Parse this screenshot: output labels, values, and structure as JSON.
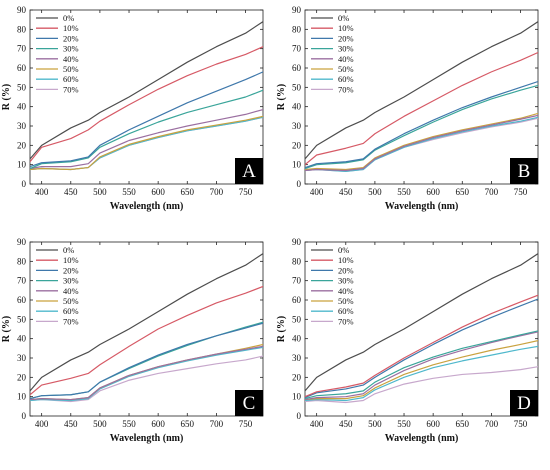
{
  "figure": {
    "xlabel": "Wavelength (nm)",
    "ylabel": "R (%)"
  },
  "chart_data": [
    {
      "type": "line",
      "panel_label": "A",
      "xlabel": "Wavelength (nm)",
      "ylabel": "R (%)",
      "xlim": [
        380,
        780
      ],
      "ylim": [
        0,
        90
      ],
      "xticks": [
        400,
        450,
        500,
        550,
        600,
        650,
        700,
        750
      ],
      "yticks": [
        0,
        10,
        20,
        30,
        40,
        50,
        60,
        70,
        80,
        90
      ],
      "legend_position": "top-left",
      "grid": false,
      "x": [
        380,
        400,
        450,
        480,
        500,
        550,
        600,
        650,
        700,
        750,
        780
      ],
      "series": [
        {
          "name": "0%",
          "color": "#4d4d4d",
          "values": [
            13,
            20,
            29,
            33,
            37,
            45,
            54,
            63,
            71,
            78,
            84
          ]
        },
        {
          "name": "10%",
          "color": "#d65a66",
          "values": [
            11.5,
            19,
            23.5,
            28,
            32.5,
            41,
            49,
            56,
            62,
            67,
            71
          ]
        },
        {
          "name": "20%",
          "color": "#3f78ab",
          "values": [
            9,
            11,
            12,
            14,
            20,
            28,
            35,
            42,
            48,
            54,
            58
          ]
        },
        {
          "name": "30%",
          "color": "#3aa59a",
          "values": [
            8,
            10.5,
            11.5,
            13.5,
            19,
            26,
            32,
            37,
            41,
            45,
            48.5
          ]
        },
        {
          "name": "40%",
          "color": "#9b6fa1",
          "values": [
            8,
            9,
            9,
            10.5,
            16,
            22.5,
            26.5,
            30,
            33,
            36,
            38.5
          ]
        },
        {
          "name": "50%",
          "color": "#c9a23f",
          "values": [
            7.5,
            8,
            7.5,
            8.5,
            14,
            20.5,
            24.5,
            28,
            30.5,
            33,
            35
          ]
        },
        {
          "name": "60%",
          "color": "#4fb8cc",
          "values": [
            7.5,
            8,
            7.5,
            8.5,
            13.5,
            20,
            24,
            27.5,
            30,
            32.5,
            34.5
          ]
        },
        {
          "name": "70%",
          "color": "#c7a8cc",
          "values": [
            7.5,
            8,
            7.5,
            8.5,
            13.5,
            20,
            24,
            27.5,
            30,
            32.5,
            34.5
          ]
        }
      ]
    },
    {
      "type": "line",
      "panel_label": "B",
      "xlabel": "Wavelength (nm)",
      "ylabel": "R (%)",
      "xlim": [
        380,
        780
      ],
      "ylim": [
        0,
        90
      ],
      "xticks": [
        400,
        450,
        500,
        550,
        600,
        650,
        700,
        750
      ],
      "yticks": [
        0,
        10,
        20,
        30,
        40,
        50,
        60,
        70,
        80,
        90
      ],
      "legend_position": "top-left",
      "grid": false,
      "x": [
        380,
        400,
        450,
        480,
        500,
        550,
        600,
        650,
        700,
        750,
        780
      ],
      "series": [
        {
          "name": "0%",
          "color": "#4d4d4d",
          "values": [
            13,
            20,
            29,
            33,
            37,
            45,
            54,
            63,
            71,
            78,
            84
          ]
        },
        {
          "name": "10%",
          "color": "#d65a66",
          "values": [
            10,
            15,
            18.5,
            21,
            26,
            35,
            43,
            51,
            58,
            64,
            68
          ]
        },
        {
          "name": "20%",
          "color": "#3f78ab",
          "values": [
            8.5,
            10.5,
            11.5,
            13,
            18,
            26,
            33,
            39.5,
            45,
            50,
            53
          ]
        },
        {
          "name": "30%",
          "color": "#3aa59a",
          "values": [
            8,
            10,
            11,
            12.5,
            17.5,
            25,
            32,
            38.5,
            44,
            48.5,
            51
          ]
        },
        {
          "name": "40%",
          "color": "#9b6fa1",
          "values": [
            7,
            7.5,
            7,
            8,
            13,
            19.5,
            24,
            27.5,
            30.5,
            33.5,
            35.5
          ]
        },
        {
          "name": "50%",
          "color": "#c9a23f",
          "values": [
            7.5,
            8,
            7.5,
            8.5,
            13.5,
            20,
            24.5,
            28,
            31,
            34,
            36.5
          ]
        },
        {
          "name": "60%",
          "color": "#4fb8cc",
          "values": [
            7,
            7.5,
            6.5,
            7.5,
            12.5,
            19,
            23.5,
            27,
            30,
            32.5,
            34.5
          ]
        },
        {
          "name": "70%",
          "color": "#c7a8cc",
          "values": [
            7,
            7.5,
            6.5,
            7.5,
            12.5,
            19,
            23,
            26.5,
            29.5,
            32,
            34
          ]
        }
      ]
    },
    {
      "type": "line",
      "panel_label": "C",
      "xlabel": "Wavelength (nm)",
      "ylabel": "R (%)",
      "xlim": [
        380,
        780
      ],
      "ylim": [
        0,
        90
      ],
      "xticks": [
        400,
        450,
        500,
        550,
        600,
        650,
        700,
        750
      ],
      "yticks": [
        0,
        10,
        20,
        30,
        40,
        50,
        60,
        70,
        80,
        90
      ],
      "legend_position": "top-left",
      "grid": false,
      "x": [
        380,
        400,
        450,
        480,
        500,
        550,
        600,
        650,
        700,
        750,
        780
      ],
      "series": [
        {
          "name": "0%",
          "color": "#4d4d4d",
          "values": [
            13,
            20,
            29,
            33,
            37,
            45,
            54,
            63,
            71,
            78,
            84
          ]
        },
        {
          "name": "10%",
          "color": "#d65a66",
          "values": [
            11,
            16,
            19.5,
            22,
            26.5,
            36,
            45,
            52,
            58.5,
            63.5,
            67
          ]
        },
        {
          "name": "20%",
          "color": "#3f78ab",
          "values": [
            9,
            10.5,
            11,
            12.5,
            17.5,
            25,
            31.5,
            37,
            41.5,
            45.5,
            48
          ]
        },
        {
          "name": "30%",
          "color": "#3aa59a",
          "values": [
            9,
            10.5,
            11,
            12.5,
            17.5,
            24.5,
            31,
            36.5,
            41.5,
            46,
            48.5
          ]
        },
        {
          "name": "40%",
          "color": "#9b6fa1",
          "values": [
            8.5,
            9,
            8.5,
            9.5,
            14.5,
            21,
            25.5,
            29,
            32,
            34.5,
            36
          ]
        },
        {
          "name": "50%",
          "color": "#c9a23f",
          "values": [
            8.5,
            9,
            8.5,
            9.5,
            14.5,
            21,
            25.5,
            29,
            32,
            35,
            37
          ]
        },
        {
          "name": "60%",
          "color": "#4fb8cc",
          "values": [
            8,
            8.5,
            8,
            9,
            14,
            20.5,
            25,
            28.5,
            31.5,
            34,
            35.5
          ]
        },
        {
          "name": "70%",
          "color": "#c7a8cc",
          "values": [
            8,
            8.5,
            7.5,
            8.5,
            13,
            18.5,
            22,
            24.5,
            27,
            29,
            31
          ]
        }
      ]
    },
    {
      "type": "line",
      "panel_label": "D",
      "xlabel": "Wavelength (nm)",
      "ylabel": "R (%)",
      "xlim": [
        380,
        780
      ],
      "ylim": [
        0,
        90
      ],
      "xticks": [
        400,
        450,
        500,
        550,
        600,
        650,
        700,
        750
      ],
      "yticks": [
        0,
        10,
        20,
        30,
        40,
        50,
        60,
        70,
        80,
        90
      ],
      "legend_position": "top-left",
      "grid": false,
      "x": [
        380,
        400,
        450,
        480,
        500,
        550,
        600,
        650,
        700,
        750,
        780
      ],
      "series": [
        {
          "name": "0%",
          "color": "#4d4d4d",
          "values": [
            13,
            20,
            29,
            33,
            37,
            45,
            54,
            63,
            71,
            78,
            84
          ]
        },
        {
          "name": "10%",
          "color": "#d65a66",
          "values": [
            10,
            12.5,
            15,
            17,
            21,
            30,
            38,
            46,
            53,
            59,
            62.5
          ]
        },
        {
          "name": "20%",
          "color": "#3f78ab",
          "values": [
            9.5,
            12,
            14,
            16,
            20,
            29,
            37,
            44.5,
            51,
            57,
            60.5
          ]
        },
        {
          "name": "30%",
          "color": "#3aa59a",
          "values": [
            9,
            10.5,
            11.5,
            13,
            17.5,
            25,
            30.5,
            35,
            38.5,
            42,
            44
          ]
        },
        {
          "name": "40%",
          "color": "#9b6fa1",
          "values": [
            8.5,
            9.5,
            10,
            11.5,
            16,
            23.5,
            29.5,
            34,
            38,
            41.5,
            43.5
          ]
        },
        {
          "name": "50%",
          "color": "#c9a23f",
          "values": [
            8.5,
            9,
            9,
            10.5,
            14.5,
            21.5,
            26.5,
            30.5,
            34,
            37,
            39
          ]
        },
        {
          "name": "60%",
          "color": "#4fb8cc",
          "values": [
            8,
            8.5,
            8,
            9.5,
            13.5,
            20,
            25,
            28.5,
            31.5,
            34.5,
            36
          ]
        },
        {
          "name": "70%",
          "color": "#c7a8cc",
          "values": [
            7.5,
            8,
            7,
            8,
            11.5,
            16.5,
            19.5,
            21.5,
            22.5,
            24,
            25.5
          ]
        }
      ]
    }
  ]
}
